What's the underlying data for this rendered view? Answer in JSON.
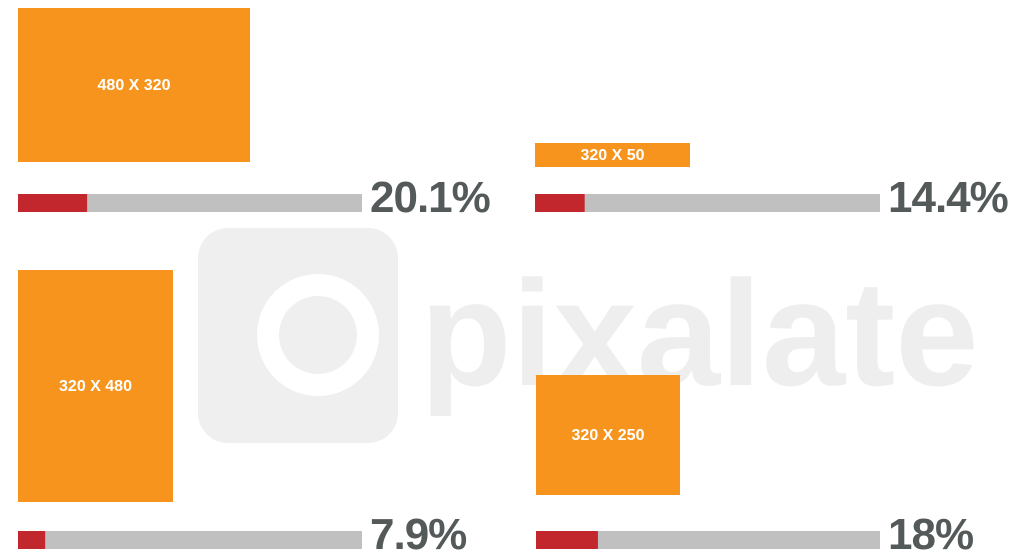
{
  "chart_data": {
    "type": "progress",
    "watermark": "pixalate",
    "categories": [
      "480 X 320",
      "320 X 50",
      "320 X 480",
      "320 X 250"
    ],
    "values": [
      20.1,
      14.4,
      7.9,
      18
    ],
    "value_labels": [
      "20.1%",
      "14.4%",
      "7.9%",
      "18%"
    ],
    "xlim": [
      0,
      100
    ],
    "color": "#c1272d",
    "track_color": "#c0c0c0",
    "box_color": "#f7941d"
  }
}
